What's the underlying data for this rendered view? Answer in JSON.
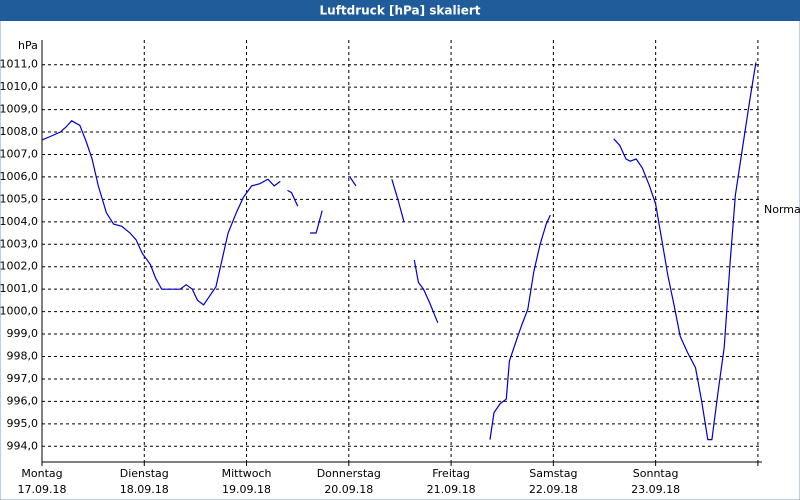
{
  "chart_data": {
    "type": "line",
    "title": "Luftdruck [hPa] skaliert",
    "y_unit": "hPa",
    "annotation": "Normal",
    "xlim": [
      0,
      7.04
    ],
    "ylim": [
      993.3,
      1012.1
    ],
    "grid": true,
    "xticks": [
      {
        "value": 0,
        "label": "Montag"
      },
      {
        "value": 1,
        "label": "Dienstag"
      },
      {
        "value": 2,
        "label": "Mittwoch"
      },
      {
        "value": 3,
        "label": "Donnerstag"
      },
      {
        "value": 4,
        "label": "Freitag"
      },
      {
        "value": 5,
        "label": "Samstag"
      },
      {
        "value": 6,
        "label": "Sonntag"
      },
      {
        "value": 7,
        "label": null
      }
    ],
    "xtick_dates": [
      "17.09.18",
      "18.09.18",
      "19.09.18",
      "20.09.18",
      "21.09.18",
      "22.09.18",
      "23.09.18",
      null
    ],
    "yticks": [
      {
        "value": 994,
        "label": "994,0"
      },
      {
        "value": 995,
        "label": "995,0"
      },
      {
        "value": 996,
        "label": "996,0"
      },
      {
        "value": 997,
        "label": "997,0"
      },
      {
        "value": 998,
        "label": "998,0"
      },
      {
        "value": 999,
        "label": "999,0"
      },
      {
        "value": 1000,
        "label": "1000,0"
      },
      {
        "value": 1001,
        "label": "1001,0"
      },
      {
        "value": 1002,
        "label": "1002,0"
      },
      {
        "value": 1003,
        "label": "1003,0"
      },
      {
        "value": 1004,
        "label": "1004,0"
      },
      {
        "value": 1005,
        "label": "1005,0"
      },
      {
        "value": 1006,
        "label": "1006,0"
      },
      {
        "value": 1007,
        "label": "1007,0"
      },
      {
        "value": 1008,
        "label": "1008,0"
      },
      {
        "value": 1009,
        "label": "1009,0"
      },
      {
        "value": 1010,
        "label": "1010,0"
      },
      {
        "value": 1011,
        "label": "1011,0"
      }
    ],
    "series": [
      {
        "color": "#0000cc",
        "x": [
          0,
          0.08,
          0.18,
          0.23,
          0.29,
          0.37,
          0.43,
          0.49,
          0.55,
          0.63,
          0.7,
          0.78,
          0.86,
          0.92,
          0.98,
          1.06,
          1.11,
          1.17,
          1.23,
          1.29,
          1.35,
          1.41,
          1.47,
          1.52,
          1.58,
          1.64,
          1.7,
          1.76,
          1.82,
          1.9,
          1.97,
          2.05,
          2.13,
          2.21,
          2.27,
          2.33,
          2.37,
          2.4,
          2.44,
          2.5,
          2.56,
          2.62,
          2.68,
          2.74,
          2.88,
          3.01,
          3.07,
          3.25,
          3.42,
          3.48,
          3.54,
          3.59,
          3.64,
          3.68,
          3.73,
          3.79,
          3.87,
          4.12,
          4.38,
          4.42,
          4.48,
          4.54,
          4.57,
          4.63,
          4.69,
          4.75,
          4.81,
          4.87,
          4.93,
          4.97,
          5.28,
          5.59,
          5.65,
          5.71,
          5.75,
          5.81,
          5.87,
          5.94,
          6.0,
          6.06,
          6.12,
          6.18,
          6.24,
          6.31,
          6.39,
          6.45,
          6.51,
          6.55,
          6.61,
          6.67,
          6.73,
          6.78,
          6.84,
          6.92,
          6.98
        ],
        "values": [
          1007.65,
          1007.8,
          1008.0,
          1008.2,
          1008.5,
          1008.3,
          1007.6,
          1006.8,
          1005.6,
          1004.4,
          1003.9,
          1003.8,
          1003.5,
          1003.2,
          1002.6,
          1002.1,
          1001.5,
          1001.0,
          1001.0,
          1001.0,
          1001.0,
          1001.2,
          1001.0,
          1000.5,
          1000.3,
          1000.7,
          1001.1,
          1002.3,
          1003.5,
          1004.4,
          1005.1,
          1005.6,
          1005.7,
          1005.9,
          1005.6,
          1005.8,
          null,
          1005.4,
          1005.3,
          1004.7,
          null,
          1003.5,
          1003.5,
          1004.5,
          null,
          1006.0,
          1005.6,
          null,
          1005.9,
          1005.0,
          1004.0,
          null,
          1002.3,
          1001.3,
          1001.0,
          1000.4,
          999.5,
          null,
          994.3,
          995.5,
          995.9,
          996.1,
          997.8,
          998.6,
          999.4,
          1000.1,
          1001.8,
          1003.0,
          1003.9,
          1004.3,
          null,
          1007.7,
          1007.4,
          1006.8,
          1006.7,
          1006.8,
          1006.4,
          1005.6,
          1004.8,
          1003.2,
          1001.6,
          1000.3,
          998.9,
          998.2,
          997.5,
          996.0,
          994.3,
          994.3,
          996.4,
          998.4,
          1002.3,
          1005.2,
          1007.0,
          1009.4,
          1011.1
        ]
      }
    ]
  }
}
